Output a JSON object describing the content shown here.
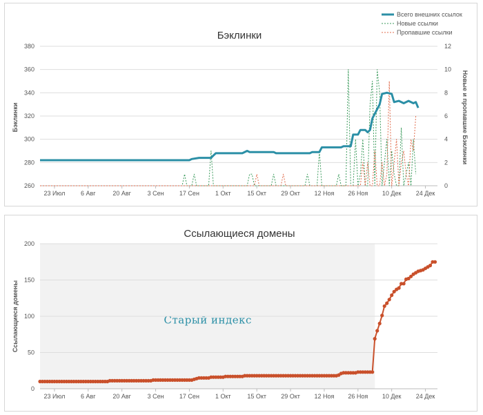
{
  "chart_data": [
    {
      "type": "line",
      "title": "Бэклинки",
      "ylabel": "Бэклинки",
      "y2label": "Новые и пропавшие Бэклинки",
      "ylim": [
        260,
        380
      ],
      "y2lim": [
        0,
        12
      ],
      "yticks": [
        260,
        280,
        300,
        320,
        340,
        360,
        380
      ],
      "y2ticks": [
        0,
        2,
        4,
        6,
        8,
        10,
        12
      ],
      "xlim": [
        0,
        165
      ],
      "xticks": [
        {
          "day": 6,
          "label": "23 Июл"
        },
        {
          "day": 20,
          "label": "6 Авг"
        },
        {
          "day": 34,
          "label": "20 Авг"
        },
        {
          "day": 48,
          "label": "3 Сен"
        },
        {
          "day": 62,
          "label": "17 Сен"
        },
        {
          "day": 76,
          "label": "1 Окт"
        },
        {
          "day": 90,
          "label": "15 Окт"
        },
        {
          "day": 104,
          "label": "29 Окт"
        },
        {
          "day": 118,
          "label": "12 Ноя"
        },
        {
          "day": 132,
          "label": "26 Ноя"
        },
        {
          "day": 146,
          "label": "10 Дек"
        },
        {
          "day": 160,
          "label": "24 Дек"
        }
      ],
      "legend_position": "top-right",
      "series": [
        {
          "name": "Всего внешних ссылок",
          "axis": "left",
          "style": "solid",
          "color": "#2b8fa6",
          "points": [
            [
              0,
              282
            ],
            [
              62,
              282
            ],
            [
              63,
              283
            ],
            [
              66,
              284
            ],
            [
              71,
              284
            ],
            [
              72,
              286
            ],
            [
              73,
              288
            ],
            [
              84,
              288
            ],
            [
              86,
              290
            ],
            [
              87,
              289
            ],
            [
              97,
              289
            ],
            [
              98,
              288
            ],
            [
              112,
              288
            ],
            [
              113,
              289
            ],
            [
              116,
              289
            ],
            [
              117,
              293
            ],
            [
              125,
              293
            ],
            [
              126,
              294
            ],
            [
              129,
              294
            ],
            [
              130,
              304
            ],
            [
              132,
              304
            ],
            [
              133,
              308
            ],
            [
              135,
              308
            ],
            [
              136,
              306
            ],
            [
              137,
              308
            ],
            [
              138,
              318
            ],
            [
              140,
              326
            ],
            [
              141,
              330
            ],
            [
              142,
              339
            ],
            [
              144,
              340
            ],
            [
              146,
              339
            ],
            [
              147,
              332
            ],
            [
              149,
              333
            ],
            [
              151,
              331
            ],
            [
              153,
              333
            ],
            [
              155,
              331
            ],
            [
              156,
              332
            ],
            [
              157,
              327
            ]
          ]
        },
        {
          "name": "Новые ссылки",
          "axis": "right",
          "style": "dashed",
          "color": "#3a9a5b",
          "points": [
            [
              0,
              0
            ],
            [
              59,
              0
            ],
            [
              60,
              1
            ],
            [
              61,
              0
            ],
            [
              63,
              0
            ],
            [
              64,
              1
            ],
            [
              65,
              0
            ],
            [
              70,
              0
            ],
            [
              71,
              3
            ],
            [
              72,
              0
            ],
            [
              86,
              0
            ],
            [
              87,
              1
            ],
            [
              88,
              1
            ],
            [
              89,
              0
            ],
            [
              96,
              0
            ],
            [
              97,
              1
            ],
            [
              98,
              0
            ],
            [
              110,
              0
            ],
            [
              111,
              1
            ],
            [
              112,
              0
            ],
            [
              115,
              0
            ],
            [
              116,
              3
            ],
            [
              117,
              0
            ],
            [
              123,
              0
            ],
            [
              124,
              1
            ],
            [
              125,
              0
            ],
            [
              127,
              0
            ],
            [
              128,
              10
            ],
            [
              129,
              0
            ],
            [
              130,
              0
            ],
            [
              131,
              4
            ],
            [
              132,
              0
            ],
            [
              133,
              1
            ],
            [
              134,
              4
            ],
            [
              135,
              0
            ],
            [
              136,
              0
            ],
            [
              137,
              7
            ],
            [
              138,
              9
            ],
            [
              139,
              0
            ],
            [
              140,
              10
            ],
            [
              141,
              8
            ],
            [
              142,
              0
            ],
            [
              143,
              2
            ],
            [
              144,
              4
            ],
            [
              145,
              0
            ],
            [
              146,
              3
            ],
            [
              147,
              1
            ],
            [
              148,
              0
            ],
            [
              149,
              0
            ],
            [
              150,
              5
            ],
            [
              151,
              0
            ],
            [
              152,
              1
            ],
            [
              153,
              2
            ],
            [
              154,
              0
            ],
            [
              155,
              4
            ],
            [
              156,
              1
            ]
          ]
        },
        {
          "name": "Пропавшие ссылки",
          "axis": "right",
          "style": "dashed",
          "color": "#e06a4a",
          "points": [
            [
              0,
              0
            ],
            [
              89,
              0
            ],
            [
              90,
              1
            ],
            [
              91,
              0
            ],
            [
              100,
              0
            ],
            [
              101,
              1
            ],
            [
              102,
              0
            ],
            [
              133,
              0
            ],
            [
              134,
              2
            ],
            [
              135,
              0
            ],
            [
              136,
              2
            ],
            [
              137,
              0
            ],
            [
              138,
              0
            ],
            [
              139,
              3
            ],
            [
              140,
              0
            ],
            [
              141,
              0
            ],
            [
              142,
              2
            ],
            [
              143,
              0
            ],
            [
              144,
              1
            ],
            [
              145,
              9
            ],
            [
              146,
              0
            ],
            [
              147,
              2
            ],
            [
              148,
              4
            ],
            [
              149,
              0
            ],
            [
              150,
              2
            ],
            [
              151,
              3
            ],
            [
              152,
              1
            ],
            [
              153,
              0
            ],
            [
              154,
              4
            ],
            [
              155,
              3
            ],
            [
              156,
              6
            ]
          ]
        }
      ]
    },
    {
      "type": "line",
      "title": "Ссылающиеся домены",
      "ylabel": "Ссылающиеся домены",
      "ylim": [
        0,
        200
      ],
      "yticks": [
        0,
        50,
        100,
        150,
        200
      ],
      "xlim": [
        0,
        165
      ],
      "xticks": [
        {
          "day": 6,
          "label": "23 Июл"
        },
        {
          "day": 20,
          "label": "6 Авг"
        },
        {
          "day": 34,
          "label": "20 Авг"
        },
        {
          "day": 48,
          "label": "3 Сен"
        },
        {
          "day": 62,
          "label": "17 Сен"
        },
        {
          "day": 76,
          "label": "1 Окт"
        },
        {
          "day": 90,
          "label": "15 Окт"
        },
        {
          "day": 104,
          "label": "29 Окт"
        },
        {
          "day": 118,
          "label": "12 Ноя"
        },
        {
          "day": 132,
          "label": "26 Ноя"
        },
        {
          "day": 146,
          "label": "10 Дек"
        },
        {
          "day": 160,
          "label": "24 Дек"
        }
      ],
      "shaded_region": {
        "x_start": 0,
        "x_end": 139,
        "label": "Старый индекс"
      },
      "series": [
        {
          "color": "#c9502b",
          "points": [
            [
              0,
              10
            ],
            [
              28,
              10
            ],
            [
              29,
              11
            ],
            [
              46,
              11
            ],
            [
              47,
              12
            ],
            [
              63,
              12
            ],
            [
              64,
              13
            ],
            [
              66,
              15
            ],
            [
              70,
              15
            ],
            [
              71,
              16
            ],
            [
              76,
              16
            ],
            [
              77,
              17
            ],
            [
              84,
              17
            ],
            [
              85,
              18
            ],
            [
              123,
              18
            ],
            [
              124,
              19
            ],
            [
              125,
              21
            ],
            [
              126,
              22
            ],
            [
              131,
              22
            ],
            [
              132,
              23
            ],
            [
              138,
              23
            ],
            [
              139,
              69
            ],
            [
              140,
              80
            ],
            [
              141,
              90
            ],
            [
              142,
              101
            ],
            [
              143,
              114
            ],
            [
              144,
              118
            ],
            [
              145,
              123
            ],
            [
              146,
              129
            ],
            [
              147,
              134
            ],
            [
              148,
              137
            ],
            [
              149,
              139
            ],
            [
              150,
              145
            ],
            [
              151,
              145
            ],
            [
              152,
              151
            ],
            [
              153,
              152
            ],
            [
              154,
              155
            ],
            [
              155,
              158
            ],
            [
              156,
              160
            ],
            [
              157,
              162
            ],
            [
              158,
              163
            ],
            [
              159,
              164
            ],
            [
              160,
              166
            ],
            [
              161,
              168
            ],
            [
              162,
              170
            ],
            [
              163,
              175
            ],
            [
              164,
              175
            ]
          ]
        }
      ]
    }
  ]
}
